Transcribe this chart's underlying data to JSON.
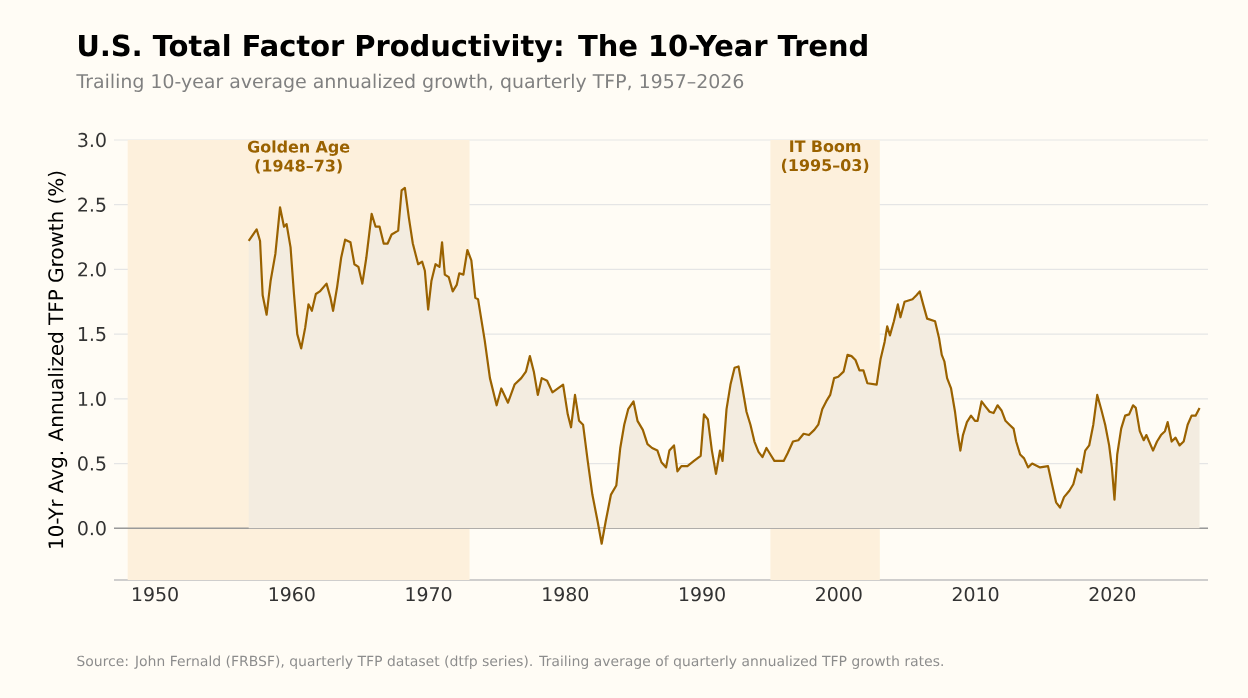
{
  "chart_data": {
    "type": "area",
    "title": "U.S. Total Factor Productivity: The 10-Year Trend",
    "subtitle": "Trailing 10-year average annualized growth, quarterly TFP, 1957–2026",
    "ylabel": "10-Yr Avg. Annualized TFP Growth (%)",
    "annotations": [
      "Source: John Fernald (FRBSF), quarterly TFP dataset (dtfp series). Trailing average of quarterly annualized TFP growth rates."
    ],
    "xlim": [
      1947,
      2027
    ],
    "ylim": [
      -0.4,
      3.0
    ],
    "xticks": [
      1950,
      1960,
      1970,
      1980,
      1990,
      2000,
      2010,
      2020
    ],
    "yticks": [
      {
        "value": 0,
        "label": "0.0"
      },
      {
        "value": 0.5,
        "label": "0.5"
      },
      {
        "value": 1,
        "label": "1.0"
      },
      {
        "value": 1.5,
        "label": "1.5"
      },
      {
        "value": 2,
        "label": "2.0"
      },
      {
        "value": 2.5,
        "label": "2.5"
      },
      {
        "value": 3,
        "label": "3.0"
      }
    ],
    "grid": "y",
    "ref_lines": [
      {
        "axis": "y",
        "value": 0,
        "color": "#999999"
      }
    ],
    "bands": [
      {
        "axis": "x",
        "from": 1948,
        "to": 1973,
        "label": "Golden Age (1948–73)",
        "color": "#fdf0dc"
      },
      {
        "axis": "x",
        "from": 1995,
        "to": 2003,
        "label": "IT Boom (1995–03)",
        "color": "#fdf0dc"
      }
    ],
    "series": [
      {
        "color": "#9a6200",
        "x": [
          1956.85,
          1957.43,
          1957.68,
          1957.87,
          1958.16,
          1958.45,
          1958.8,
          1959.14,
          1959.43,
          1959.62,
          1959.91,
          1960.16,
          1960.4,
          1960.69,
          1960.98,
          1961.22,
          1961.47,
          1961.76,
          1962.05,
          1962.54,
          1962.83,
          1963.02,
          1963.31,
          1963.61,
          1963.9,
          1964.29,
          1964.58,
          1964.87,
          1965.16,
          1965.45,
          1965.84,
          1966.13,
          1966.42,
          1966.72,
          1967.01,
          1967.3,
          1967.78,
          1968.03,
          1968.27,
          1968.56,
          1968.85,
          1969.24,
          1969.53,
          1969.73,
          1969.97,
          1970.21,
          1970.51,
          1970.8,
          1970.99,
          1971.19,
          1971.48,
          1971.77,
          1972.06,
          1972.25,
          1972.55,
          1972.84,
          1973.13,
          1973.42,
          1973.62,
          1974.11,
          1974.49,
          1974.98,
          1975.32,
          1975.81,
          1976.29,
          1976.78,
          1977.12,
          1977.41,
          1977.7,
          1977.99,
          1978.28,
          1978.67,
          1979.06,
          1979.84,
          1980.18,
          1980.42,
          1980.71,
          1981.01,
          1981.3,
          1981.64,
          1981.98,
          1982.37,
          1982.66,
          1982.95,
          1983.34,
          1983.73,
          1984.02,
          1984.31,
          1984.6,
          1984.99,
          1985.28,
          1985.67,
          1986.01,
          1986.35,
          1986.74,
          1987.03,
          1987.37,
          1987.61,
          1987.95,
          1988.2,
          1988.49,
          1988.93,
          1989.41,
          1989.9,
          1990.14,
          1990.43,
          1990.72,
          1991.02,
          1991.31,
          1991.5,
          1991.79,
          1992.08,
          1992.38,
          1992.67,
          1992.96,
          1993.25,
          1993.54,
          1993.83,
          1994.13,
          1994.42,
          1994.71,
          1995.0,
          1995.29,
          1995.97,
          1996.26,
          1996.65,
          1997.04,
          1997.43,
          1997.82,
          1998.21,
          1998.5,
          1998.79,
          1999.08,
          1999.37,
          1999.66,
          1999.96,
          2000.35,
          2000.64,
          2000.93,
          2001.22,
          2001.51,
          2001.8,
          2002.09,
          2002.77,
          2003.06,
          2003.35,
          2003.54,
          2003.74,
          2004.03,
          2004.32,
          2004.51,
          2004.81,
          2005.39,
          2005.68,
          2005.92,
          2006.17,
          2006.46,
          2007.04,
          2007.33,
          2007.53,
          2007.72,
          2007.92,
          2008.21,
          2008.5,
          2008.69,
          2008.89,
          2009.08,
          2009.37,
          2009.67,
          2009.96,
          2010.15,
          2010.44,
          2010.73,
          2011.03,
          2011.32,
          2011.61,
          2011.9,
          2012.19,
          2012.48,
          2012.78,
          2012.97,
          2013.26,
          2013.55,
          2013.84,
          2014.14,
          2014.72,
          2015.3,
          2015.59,
          2015.89,
          2016.18,
          2016.47,
          2016.86,
          2017.15,
          2017.44,
          2017.73,
          2018.02,
          2018.31,
          2018.61,
          2018.9,
          2019.19,
          2019.48,
          2019.77,
          2019.97,
          2020.16,
          2020.36,
          2020.65,
          2020.94,
          2021.23,
          2021.52,
          2021.72,
          2022.01,
          2022.3,
          2022.49,
          2022.98,
          2023.27,
          2023.56,
          2023.85,
          2024.05,
          2024.34,
          2024.63,
          2024.92,
          2025.22,
          2025.51,
          2025.8,
          2026.09,
          2026.38
        ],
        "values": [
          2.22,
          2.31,
          2.22,
          1.8,
          1.65,
          1.91,
          2.12,
          2.48,
          2.33,
          2.35,
          2.17,
          1.81,
          1.5,
          1.39,
          1.55,
          1.73,
          1.68,
          1.81,
          1.83,
          1.89,
          1.78,
          1.68,
          1.86,
          2.09,
          2.23,
          2.21,
          2.04,
          2.02,
          1.89,
          2.09,
          2.43,
          2.33,
          2.33,
          2.2,
          2.2,
          2.27,
          2.3,
          2.61,
          2.63,
          2.4,
          2.2,
          2.04,
          2.06,
          1.99,
          1.69,
          1.91,
          2.04,
          2.02,
          2.21,
          1.96,
          1.94,
          1.83,
          1.88,
          1.97,
          1.96,
          2.15,
          2.07,
          1.78,
          1.77,
          1.45,
          1.16,
          0.95,
          1.08,
          0.97,
          1.11,
          1.16,
          1.21,
          1.33,
          1.21,
          1.03,
          1.16,
          1.14,
          1.05,
          1.11,
          0.88,
          0.78,
          1.03,
          0.83,
          0.8,
          0.52,
          0.26,
          0.05,
          -0.12,
          0.05,
          0.26,
          0.33,
          0.62,
          0.8,
          0.92,
          0.98,
          0.83,
          0.76,
          0.65,
          0.62,
          0.6,
          0.51,
          0.47,
          0.6,
          0.64,
          0.44,
          0.48,
          0.48,
          0.52,
          0.56,
          0.88,
          0.84,
          0.6,
          0.42,
          0.6,
          0.52,
          0.92,
          1.11,
          1.24,
          1.25,
          1.08,
          0.9,
          0.8,
          0.67,
          0.59,
          0.55,
          0.62,
          0.57,
          0.52,
          0.52,
          0.58,
          0.67,
          0.68,
          0.73,
          0.72,
          0.76,
          0.8,
          0.92,
          0.98,
          1.03,
          1.16,
          1.17,
          1.21,
          1.34,
          1.33,
          1.3,
          1.22,
          1.22,
          1.12,
          1.11,
          1.31,
          1.44,
          1.56,
          1.49,
          1.6,
          1.73,
          1.63,
          1.75,
          1.77,
          1.8,
          1.83,
          1.73,
          1.62,
          1.6,
          1.47,
          1.34,
          1.29,
          1.16,
          1.08,
          0.9,
          0.74,
          0.6,
          0.72,
          0.82,
          0.87,
          0.83,
          0.83,
          0.98,
          0.94,
          0.9,
          0.89,
          0.95,
          0.91,
          0.83,
          0.8,
          0.77,
          0.67,
          0.57,
          0.54,
          0.47,
          0.5,
          0.47,
          0.48,
          0.34,
          0.2,
          0.16,
          0.24,
          0.29,
          0.34,
          0.46,
          0.43,
          0.6,
          0.64,
          0.8,
          1.03,
          0.92,
          0.8,
          0.64,
          0.47,
          0.22,
          0.57,
          0.77,
          0.87,
          0.88,
          0.95,
          0.93,
          0.75,
          0.68,
          0.72,
          0.6,
          0.67,
          0.72,
          0.75,
          0.82,
          0.67,
          0.7,
          0.64,
          0.67,
          0.8,
          0.87,
          0.87,
          0.93
        ]
      }
    ]
  }
}
